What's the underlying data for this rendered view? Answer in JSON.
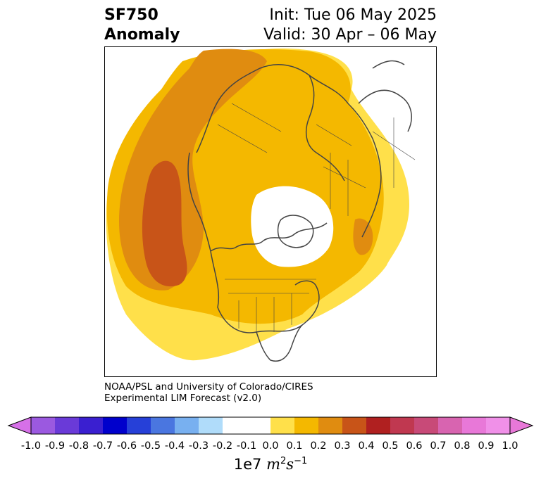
{
  "title": {
    "left_line1": "SF750",
    "left_line2": "Anomaly",
    "right_line1": "Init: Tue 06 May 2025",
    "right_line2": "Valid: 30 Apr – 06 May"
  },
  "credit": {
    "line1": "NOAA/PSL and University of Colorado/CIRES",
    "line2": "Experimental LIM Forecast (v2.0)"
  },
  "colorbar": {
    "levels": [
      "-1.0",
      "-0.9",
      "-0.8",
      "-0.7",
      "-0.6",
      "-0.5",
      "-0.4",
      "-0.3",
      "-0.2",
      "-0.1",
      "0.0",
      "0.1",
      "0.2",
      "0.3",
      "0.4",
      "0.5",
      "0.6",
      "0.7",
      "0.8",
      "0.9",
      "1.0"
    ],
    "colors": [
      "#9b59e0",
      "#6a3ad8",
      "#3a1fd0",
      "#0000cc",
      "#2640d8",
      "#4a76e0",
      "#78b0f0",
      "#b0dcfa",
      "#ffffff",
      "#ffffff",
      "#ffe04a",
      "#f4b800",
      "#e08c10",
      "#c85418",
      "#b02020",
      "#c03850",
      "#c84a78",
      "#d864b0",
      "#e878d8",
      "#f090e8"
    ],
    "under_color": "#d670e8",
    "over_color": "#e878d8",
    "units_prefix": "1e7",
    "units_m": "m",
    "units_m_exp": "2",
    "units_s": "s",
    "units_s_exp": "−1"
  },
  "map": {
    "field_colors": {
      "c01": "#ffe04a",
      "c02": "#f4b800",
      "c03": "#e08c10",
      "c04": "#c85418"
    },
    "coastline_color": "#444444"
  }
}
